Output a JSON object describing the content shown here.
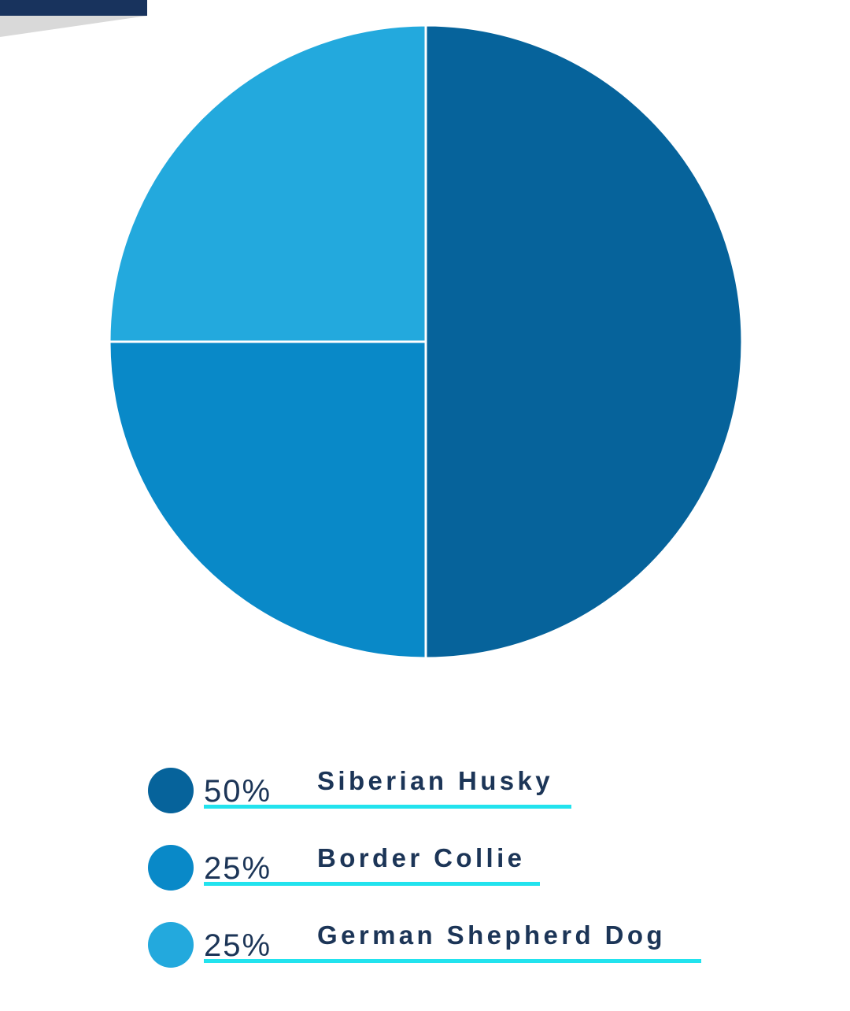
{
  "chart_data": {
    "type": "pie",
    "slices": [
      {
        "label": "Siberian Husky",
        "percent_label": "50%",
        "value": 50,
        "color": "#06639b"
      },
      {
        "label": "Border Collie",
        "percent_label": "25%",
        "value": 25,
        "color": "#0989c8"
      },
      {
        "label": "German Shepherd Dog",
        "percent_label": "25%",
        "value": 25,
        "color": "#23a9dd"
      }
    ],
    "legend_position": "bottom"
  },
  "colors": {
    "text": "#1c3557",
    "underline": "#22e3ee",
    "header_bar": "#18335d"
  }
}
